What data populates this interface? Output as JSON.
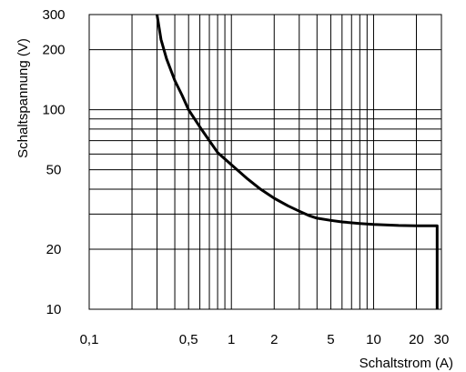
{
  "chart_data": {
    "type": "line",
    "title": "",
    "xlabel": "Schaltstrom (A)",
    "ylabel": "Schaltspannung (V)",
    "x_scale": "log",
    "y_scale": "log",
    "xlim": [
      0.1,
      30
    ],
    "ylim": [
      10,
      300
    ],
    "x_ticks": [
      {
        "value": 0.1,
        "label": "0,1"
      },
      {
        "value": 0.5,
        "label": "0,5"
      },
      {
        "value": 1,
        "label": "1"
      },
      {
        "value": 2,
        "label": "2"
      },
      {
        "value": 5,
        "label": "5"
      },
      {
        "value": 10,
        "label": "10"
      },
      {
        "value": 20,
        "label": "20"
      },
      {
        "value": 30,
        "label": "30"
      }
    ],
    "y_ticks": [
      {
        "value": 10,
        "label": "10"
      },
      {
        "value": 20,
        "label": "20"
      },
      {
        "value": 50,
        "label": "50"
      },
      {
        "value": 100,
        "label": "100"
      },
      {
        "value": 200,
        "label": "200"
      },
      {
        "value": 300,
        "label": "300"
      }
    ],
    "x_gridlines": [
      0.2,
      0.3,
      0.4,
      0.5,
      0.6,
      0.7,
      0.8,
      0.9,
      1,
      2,
      3,
      4,
      5,
      6,
      7,
      8,
      9,
      10,
      20,
      30
    ],
    "y_gridlines": [
      20,
      30,
      40,
      50,
      60,
      70,
      80,
      90,
      100,
      200,
      300
    ],
    "grid": true,
    "series": [
      {
        "color": "#000000",
        "x": [
          0.3,
          0.32,
          0.35,
          0.4,
          0.45,
          0.5,
          0.6,
          0.7,
          0.8,
          1.0,
          1.3,
          1.6,
          2.0,
          2.5,
          3.0,
          3.5,
          4.0,
          5.0,
          6.0,
          8.0,
          10.0,
          15.0,
          20.0,
          25.0,
          28.0,
          28.0
        ],
        "y": [
          300,
          225,
          180,
          140,
          118,
          100,
          82,
          70,
          61,
          53,
          45,
          40,
          36,
          33,
          31,
          29.5,
          28.6,
          27.9,
          27.4,
          26.9,
          26.6,
          26.3,
          26.2,
          26.2,
          26.2,
          10
        ]
      }
    ]
  }
}
